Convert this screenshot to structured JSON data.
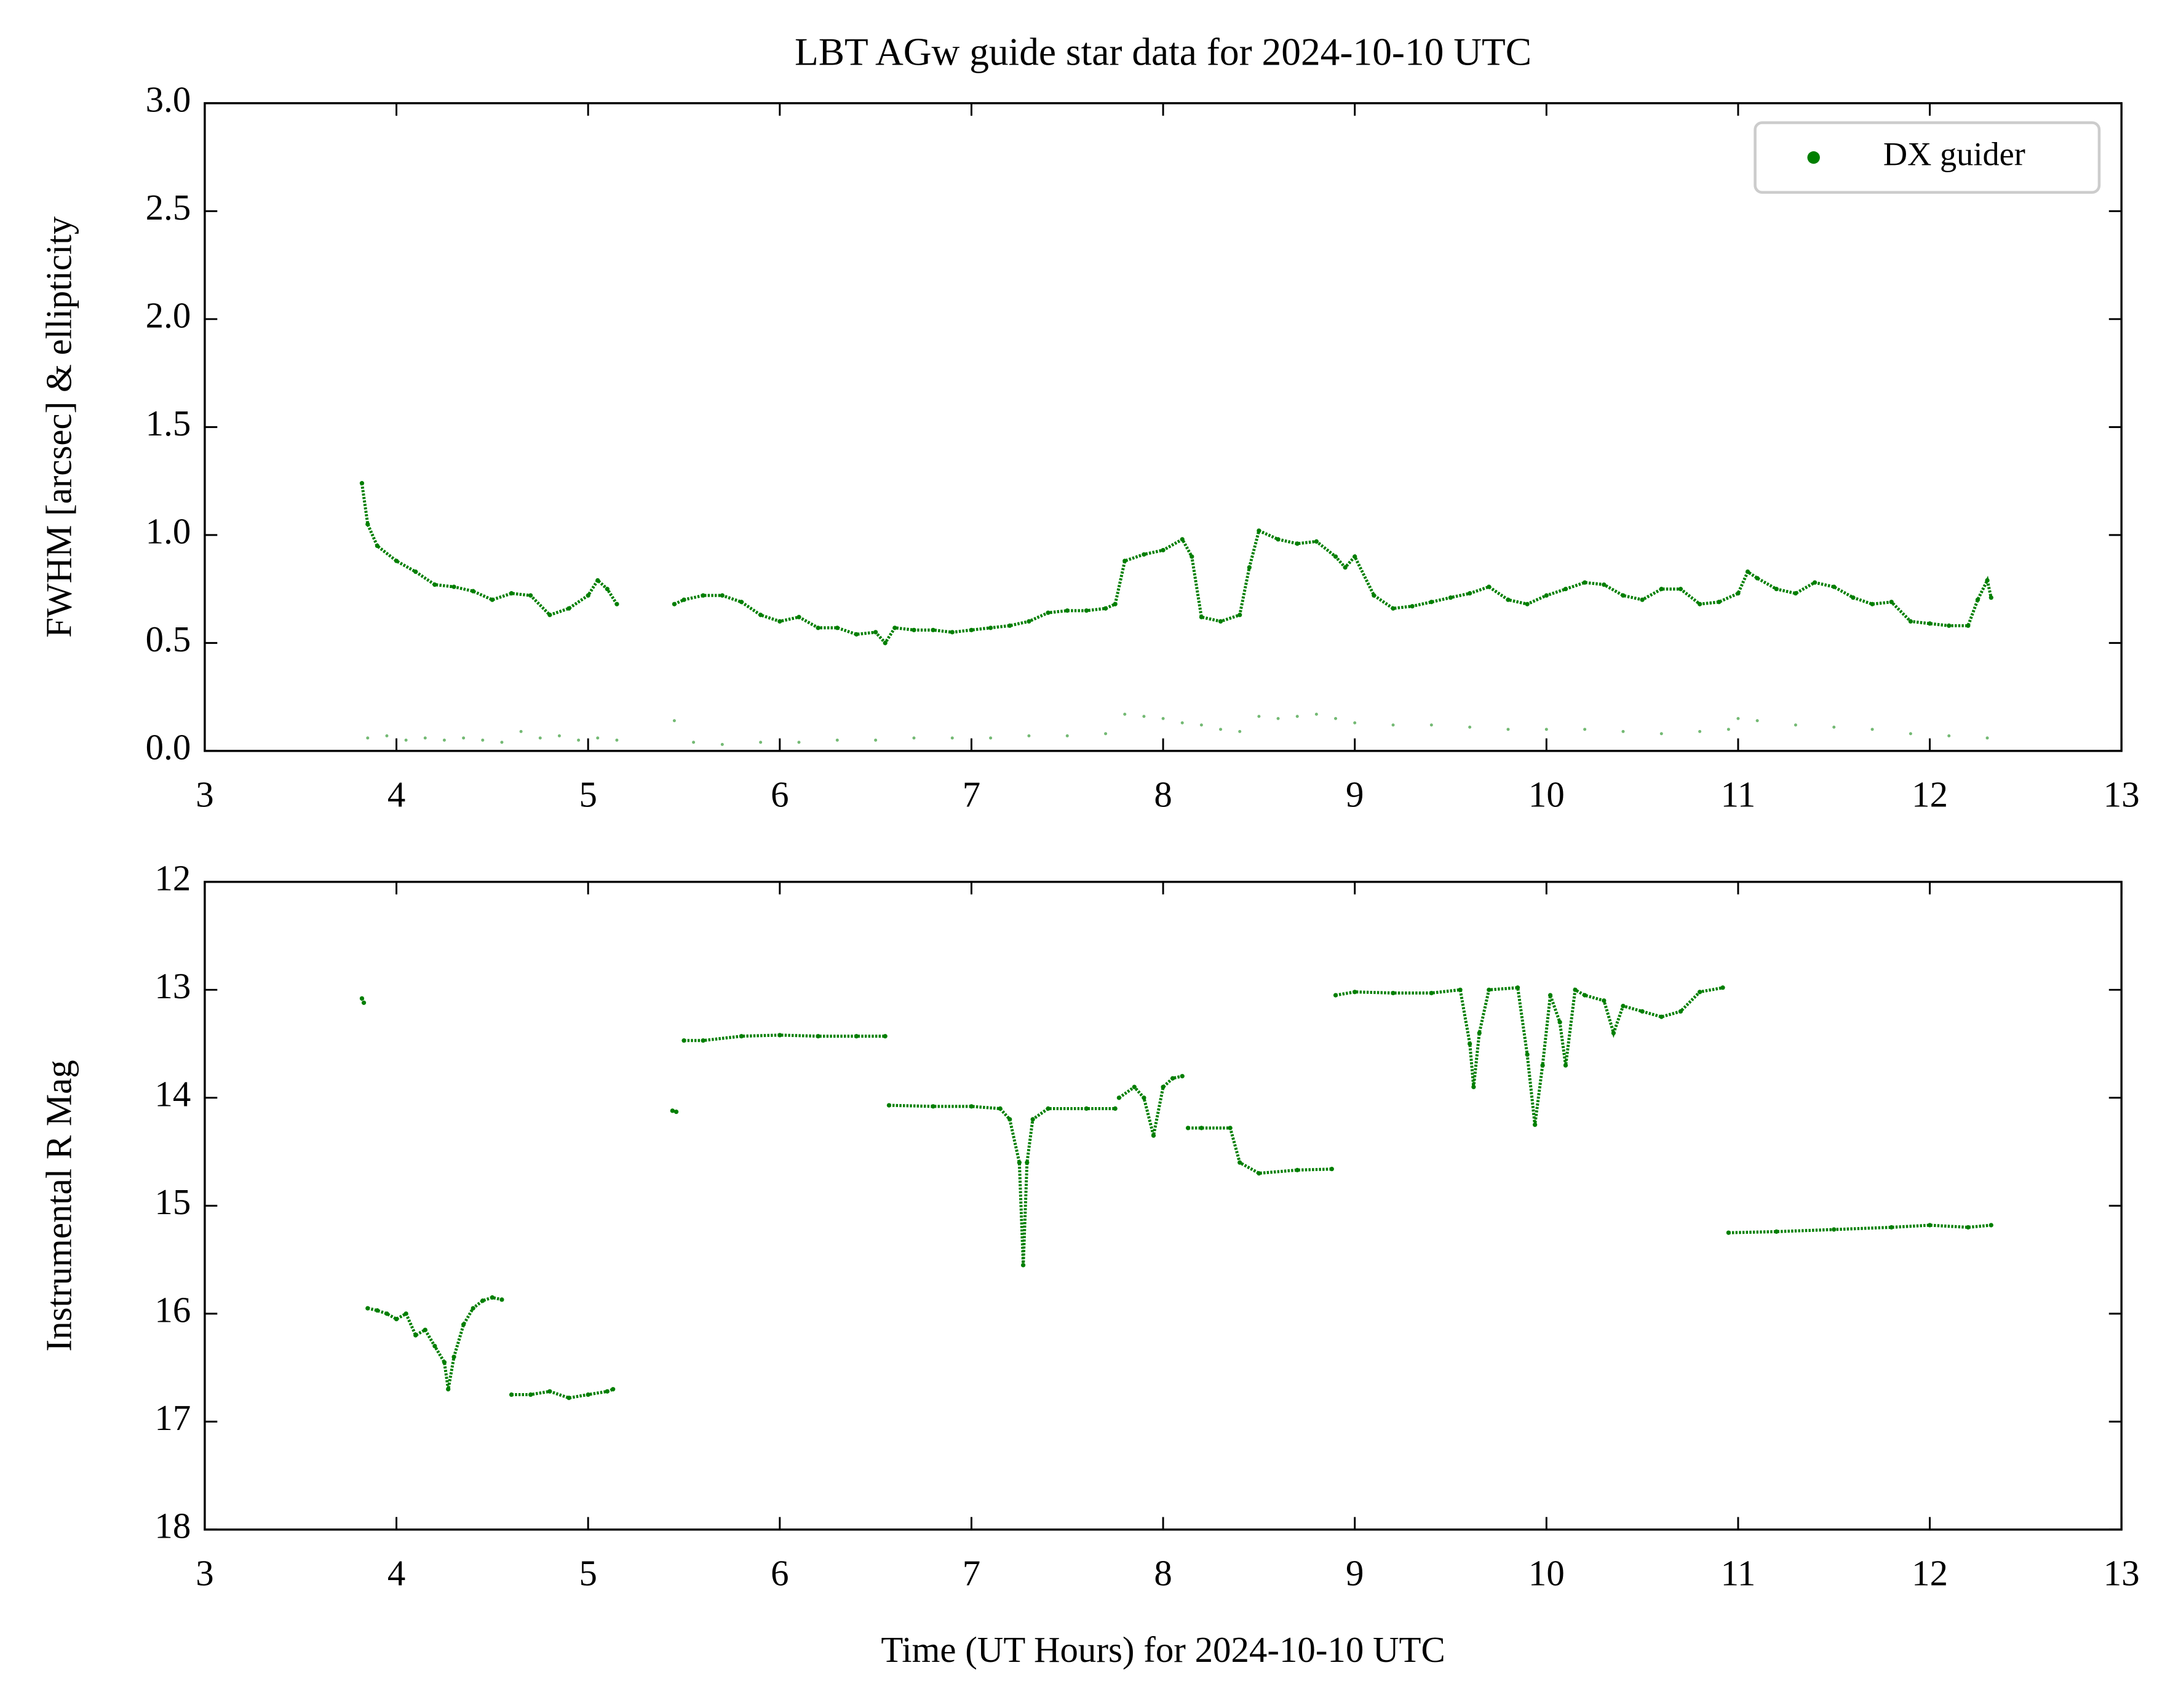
{
  "chart_data": [
    {
      "type": "scatter",
      "title": "LBT AGw guide star data for 2024-10-10 UTC",
      "ylabel": "FWHM [arcsec] & ellipticity",
      "xlim": [
        3,
        13
      ],
      "xticks": [
        3,
        4,
        5,
        6,
        7,
        8,
        9,
        10,
        11,
        12,
        13
      ],
      "ylim": [
        0,
        3
      ],
      "yticks": [
        {
          "value": 0,
          "label": "0.0"
        },
        0.5,
        {
          "value": 1,
          "label": "1.0"
        },
        1.5,
        {
          "value": 2,
          "label": "2.0"
        },
        2.5,
        {
          "value": 3,
          "label": "3.0"
        }
      ],
      "legend": "upper right",
      "series": [
        {
          "name": "DX guider",
          "color": "#007f00",
          "x": [
            3.82,
            3.85,
            3.9,
            4.0,
            4.1,
            4.2,
            4.3,
            4.4,
            4.5,
            4.6,
            4.7,
            4.8,
            4.9,
            5.0,
            5.05,
            5.1,
            5.15,
            null,
            5.45,
            5.5,
            5.6,
            5.7,
            5.8,
            5.9,
            6.0,
            6.1,
            6.2,
            6.3,
            6.4,
            6.5,
            6.55,
            6.6,
            6.7,
            6.8,
            6.9,
            7.0,
            7.1,
            7.2,
            7.3,
            7.4,
            7.5,
            7.6,
            7.7,
            7.75,
            7.8,
            7.9,
            8.0,
            8.1,
            8.15,
            8.2,
            8.3,
            8.4,
            8.45,
            8.5,
            8.6,
            8.7,
            8.8,
            8.9,
            8.95,
            9.0,
            9.1,
            9.2,
            9.3,
            9.4,
            9.5,
            9.6,
            9.7,
            9.8,
            9.9,
            10.0,
            10.1,
            10.2,
            10.3,
            10.4,
            10.5,
            10.6,
            10.7,
            10.8,
            10.9,
            11.0,
            11.05,
            11.1,
            11.2,
            11.3,
            11.4,
            11.5,
            11.6,
            11.7,
            11.8,
            11.9,
            12.0,
            12.1,
            12.2,
            12.25,
            12.3,
            12.32
          ],
          "values": [
            1.24,
            1.05,
            0.95,
            0.88,
            0.83,
            0.77,
            0.76,
            0.74,
            0.7,
            0.73,
            0.72,
            0.63,
            0.66,
            0.72,
            0.79,
            0.75,
            0.68,
            null,
            0.68,
            0.7,
            0.72,
            0.72,
            0.69,
            0.63,
            0.6,
            0.62,
            0.57,
            0.57,
            0.54,
            0.55,
            0.5,
            0.57,
            0.56,
            0.56,
            0.55,
            0.56,
            0.57,
            0.58,
            0.6,
            0.64,
            0.65,
            0.65,
            0.66,
            0.68,
            0.88,
            0.91,
            0.93,
            0.98,
            0.9,
            0.62,
            0.6,
            0.63,
            0.85,
            1.02,
            0.98,
            0.96,
            0.97,
            0.9,
            0.85,
            0.9,
            0.72,
            0.66,
            0.67,
            0.69,
            0.71,
            0.73,
            0.76,
            0.7,
            0.68,
            0.72,
            0.75,
            0.78,
            0.77,
            0.72,
            0.7,
            0.75,
            0.75,
            0.68,
            0.69,
            0.73,
            0.83,
            0.8,
            0.75,
            0.73,
            0.78,
            0.76,
            0.71,
            0.68,
            0.69,
            0.6,
            0.59,
            0.58,
            0.58,
            0.7,
            0.79,
            0.71
          ]
        },
        {
          "color": "#007f00",
          "x": [
            3.85,
            3.95,
            4.05,
            4.15,
            4.25,
            4.35,
            4.45,
            4.55,
            4.65,
            4.75,
            4.85,
            4.95,
            5.05,
            5.15,
            null,
            5.45,
            5.55,
            5.7,
            5.9,
            6.1,
            6.3,
            6.5,
            6.7,
            6.9,
            7.1,
            7.3,
            7.5,
            7.7,
            7.8,
            7.9,
            8.0,
            8.1,
            8.2,
            8.3,
            8.4,
            8.5,
            8.6,
            8.7,
            8.8,
            8.9,
            9.0,
            9.2,
            9.4,
            9.6,
            9.8,
            10.0,
            10.2,
            10.4,
            10.6,
            10.8,
            10.95,
            11.0,
            11.1,
            11.3,
            11.5,
            11.7,
            11.9,
            12.1,
            12.3
          ],
          "values": [
            0.06,
            0.07,
            0.05,
            0.06,
            0.05,
            0.06,
            0.05,
            0.04,
            0.09,
            0.06,
            0.07,
            0.05,
            0.06,
            0.05,
            null,
            0.14,
            0.04,
            0.03,
            0.04,
            0.04,
            0.05,
            0.05,
            0.06,
            0.06,
            0.06,
            0.07,
            0.07,
            0.08,
            0.17,
            0.16,
            0.15,
            0.13,
            0.12,
            0.1,
            0.09,
            0.16,
            0.15,
            0.16,
            0.17,
            0.15,
            0.13,
            0.12,
            0.12,
            0.11,
            0.1,
            0.1,
            0.1,
            0.09,
            0.08,
            0.09,
            0.1,
            0.15,
            0.14,
            0.12,
            0.11,
            0.1,
            0.08,
            0.07,
            0.06
          ]
        }
      ]
    },
    {
      "type": "scatter",
      "ylabel": "Instrumental R Mag",
      "xlabel": "Time (UT Hours) for 2024-10-10 UTC",
      "xlim": [
        3,
        13
      ],
      "xticks": [
        3,
        4,
        5,
        6,
        7,
        8,
        9,
        10,
        11,
        12,
        13
      ],
      "ylim": [
        18,
        12
      ],
      "yticks": [
        12,
        13,
        14,
        15,
        16,
        17,
        18
      ],
      "series": [
        {
          "color": "#007f00",
          "x": [
            3.82,
            3.83,
            null,
            3.85,
            3.9,
            3.95,
            4.0,
            4.05,
            4.1,
            4.15,
            4.2,
            4.25,
            4.27,
            4.3,
            4.35,
            4.4,
            4.45,
            4.5,
            4.55,
            null,
            4.6,
            4.7,
            4.8,
            4.9,
            5.0,
            5.1,
            5.13,
            null,
            5.44,
            5.46,
            null,
            5.5,
            5.6,
            5.8,
            6.0,
            6.2,
            6.4,
            6.55,
            null,
            6.57,
            6.8,
            7.0,
            7.15,
            7.2,
            7.25,
            7.27,
            7.29,
            7.32,
            7.4,
            7.6,
            7.75,
            null,
            7.77,
            7.85,
            7.9,
            7.95,
            8.0,
            8.05,
            8.1,
            null,
            8.13,
            8.2,
            8.35,
            8.4,
            8.5,
            8.7,
            8.88,
            null,
            8.9,
            9.0,
            9.2,
            9.4,
            9.55,
            9.6,
            9.62,
            9.65,
            9.7,
            9.85,
            9.9,
            9.94,
            9.98,
            10.02,
            10.07,
            10.1,
            10.15,
            10.2,
            10.3,
            10.35,
            10.4,
            10.5,
            10.6,
            10.7,
            10.8,
            10.92,
            null,
            10.95,
            11.2,
            11.5,
            11.8,
            12.0,
            12.2,
            12.32
          ],
          "values": [
            13.08,
            13.12,
            null,
            15.95,
            15.97,
            16.0,
            16.05,
            16.0,
            16.2,
            16.15,
            16.3,
            16.45,
            16.7,
            16.4,
            16.1,
            15.95,
            15.88,
            15.85,
            15.87,
            null,
            16.75,
            16.75,
            16.72,
            16.78,
            16.75,
            16.72,
            16.7,
            null,
            14.12,
            14.13,
            null,
            13.47,
            13.47,
            13.43,
            13.42,
            13.43,
            13.43,
            13.43,
            null,
            14.07,
            14.08,
            14.08,
            14.1,
            14.2,
            14.6,
            15.55,
            14.6,
            14.2,
            14.1,
            14.1,
            14.1,
            null,
            14.0,
            13.9,
            14.0,
            14.35,
            13.9,
            13.82,
            13.8,
            null,
            14.28,
            14.28,
            14.28,
            14.6,
            14.7,
            14.67,
            14.66,
            null,
            13.05,
            13.02,
            13.03,
            13.03,
            13.0,
            13.5,
            13.9,
            13.4,
            13.0,
            12.98,
            13.6,
            14.25,
            13.7,
            13.05,
            13.3,
            13.7,
            13.0,
            13.05,
            13.1,
            13.4,
            13.15,
            13.2,
            13.25,
            13.2,
            13.02,
            12.98,
            null,
            15.25,
            15.24,
            15.22,
            15.2,
            15.18,
            15.2,
            15.18
          ]
        }
      ]
    }
  ]
}
